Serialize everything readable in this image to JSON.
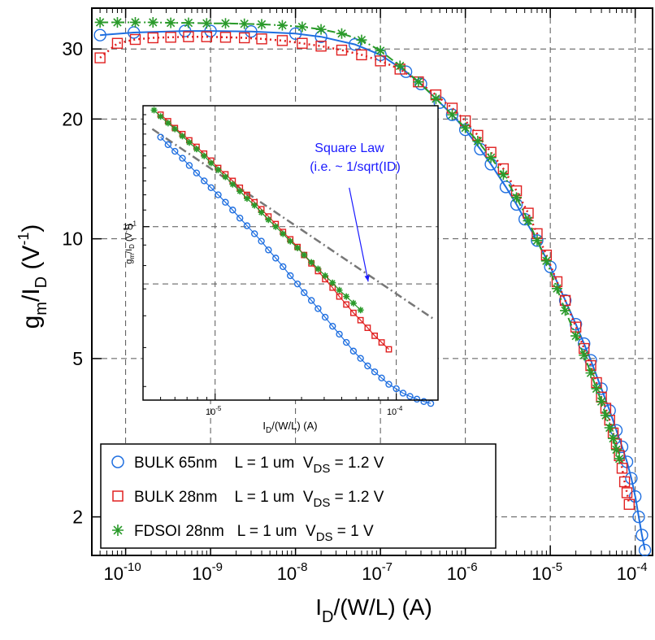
{
  "chart_data": [
    {
      "type": "scatter",
      "xlabel_main": "I",
      "xlabel_sub": "D",
      "xlabel_rest": "/(W/L) (A)",
      "ylabel_g": "g",
      "ylabel_m": "m",
      "ylabel_I": "/I",
      "ylabel_D": "D",
      "ylabel_units": " (V",
      "ylabel_exp": "-1",
      "ylabel_close": ")",
      "x_scale": "log",
      "y_scale": "log",
      "xlim": [
        4e-11,
        0.00016
      ],
      "ylim": [
        1.6,
        38
      ],
      "grid": true,
      "legend_placement": "bottom-left",
      "x_ticks": [
        {
          "value": 1e-10,
          "base": "10",
          "exp": "-10"
        },
        {
          "value": 1e-09,
          "base": "10",
          "exp": "-9"
        },
        {
          "value": 1e-08,
          "base": "10",
          "exp": "-8"
        },
        {
          "value": 1e-07,
          "base": "10",
          "exp": "-7"
        },
        {
          "value": 1e-06,
          "base": "10",
          "exp": "-6"
        },
        {
          "value": 1e-05,
          "base": "10",
          "exp": "-5"
        },
        {
          "value": 0.0001,
          "base": "10",
          "exp": "-4"
        }
      ],
      "y_ticks": [
        {
          "value": 2,
          "label": "2"
        },
        {
          "value": 5,
          "label": "5"
        },
        {
          "value": 10,
          "label": "10"
        },
        {
          "value": 20,
          "label": "20"
        },
        {
          "value": 30,
          "label": "30"
        }
      ],
      "series": [
        {
          "name": "BULK 65nm",
          "legend_text": "BULK 65nm    L = 1 um  V",
          "legend_sub": "DS",
          "legend_tail": " = 1.2 V",
          "color": "#1f6fe0",
          "marker": "circle",
          "line": "solid",
          "x": [
            5e-11,
            1.25e-10,
            5e-10,
            1e-09,
            3e-09,
            1e-08,
            2e-08,
            5e-08,
            1e-07,
            2e-07,
            3e-07,
            5e-07,
            7e-07,
            1e-06,
            1.5e-06,
            2e-06,
            3e-06,
            4e-06,
            5e-06,
            7e-06,
            1e-05,
            1.5e-05,
            2e-05,
            2.5e-05,
            3e-05,
            4e-05,
            5e-05,
            6e-05,
            7e-05,
            8e-05,
            9e-05,
            0.0001,
            0.00011,
            0.00012,
            0.00013
          ],
          "y": [
            32.5,
            33.0,
            33.3,
            33.3,
            33.2,
            32.8,
            32.2,
            30.8,
            29.0,
            26.3,
            24.5,
            22.0,
            20.5,
            18.8,
            16.8,
            15.4,
            13.5,
            12.2,
            11.2,
            9.9,
            8.5,
            7.0,
            6.1,
            5.45,
            4.95,
            4.2,
            3.7,
            3.3,
            3.0,
            2.75,
            2.5,
            2.25,
            2.0,
            1.8,
            1.65
          ]
        },
        {
          "name": "BULK 28nm",
          "legend_text": "BULK 28nm    L = 1 um  V",
          "legend_sub": "DS",
          "legend_tail": " = 1.2 V",
          "color": "#e02020",
          "marker": "square",
          "line": "dotted",
          "x": [
            5e-11,
            8e-11,
            1.3e-10,
            2.1e-10,
            3.4e-10,
            5.5e-10,
            9e-10,
            1.5e-09,
            2.5e-09,
            4e-09,
            7e-09,
            1.2e-08,
            2e-08,
            3.5e-08,
            6e-08,
            1e-07,
            1.7e-07,
            2.8e-07,
            4.5e-07,
            7e-07,
            1e-06,
            1.4e-06,
            2e-06,
            2.8e-06,
            4e-06,
            5.5e-06,
            7e-06,
            9e-06,
            1.2e-05,
            1.5e-05,
            2e-05,
            2.5e-05,
            3e-05,
            3.5e-05,
            4e-05,
            4.5e-05,
            5e-05,
            5.5e-05,
            6e-05,
            6.5e-05,
            7e-05,
            7.5e-05,
            8e-05,
            8.5e-05
          ],
          "y": [
            28.5,
            31.0,
            31.7,
            32.0,
            32.1,
            32.2,
            32.2,
            32.1,
            32.0,
            31.8,
            31.5,
            31.0,
            30.5,
            29.8,
            29.0,
            28.0,
            26.7,
            24.8,
            23.0,
            21.3,
            19.8,
            18.2,
            16.5,
            15.0,
            13.2,
            11.6,
            10.3,
            9.1,
            7.8,
            7.0,
            6.0,
            5.3,
            4.8,
            4.35,
            4.0,
            3.75,
            3.5,
            3.25,
            3.05,
            2.85,
            2.65,
            2.45,
            2.3,
            2.15
          ]
        },
        {
          "name": "FDSOI 28nm",
          "legend_text": "FDSOI 28nm   L = 1 um  V",
          "legend_sub": "DS",
          "legend_tail": " = 1 V",
          "color": "#2a9a2a",
          "marker": "star",
          "line": "dashdot",
          "x": [
            5e-11,
            8e-11,
            1.3e-10,
            2.1e-10,
            3.4e-10,
            5.5e-10,
            9e-10,
            1.5e-09,
            2.5e-09,
            4e-09,
            7e-09,
            1.2e-08,
            2e-08,
            3.5e-08,
            6e-08,
            1e-07,
            1.7e-07,
            2.8e-07,
            4.5e-07,
            7e-07,
            1e-06,
            1.4e-06,
            2e-06,
            2.8e-06,
            4e-06,
            5.5e-06,
            7e-06,
            9e-06,
            1.2e-05,
            1.5e-05,
            2e-05,
            2.5e-05,
            3e-05,
            3.5e-05,
            4e-05,
            4.5e-05,
            5e-05,
            5.5e-05,
            6e-05,
            6.5e-05
          ],
          "y": [
            35.0,
            35.0,
            35.0,
            35.0,
            34.9,
            34.9,
            34.8,
            34.8,
            34.7,
            34.6,
            34.4,
            34.1,
            33.6,
            32.8,
            31.6,
            29.7,
            27.2,
            24.8,
            22.5,
            20.5,
            19.0,
            17.6,
            16.0,
            14.5,
            12.7,
            11.1,
            9.9,
            8.8,
            7.5,
            6.6,
            5.7,
            5.1,
            4.6,
            4.2,
            3.9,
            3.6,
            3.35,
            3.15,
            2.95,
            2.8
          ]
        }
      ]
    },
    {
      "type": "scatter",
      "role": "inset",
      "xlabel_main": "I",
      "xlabel_sub": "D",
      "xlabel_rest": "/(W/L) (A)",
      "ylabel_g": "g",
      "ylabel_m": "m",
      "ylabel_I": "/I",
      "ylabel_D": "D",
      "ylabel_units": " (V",
      "ylabel_exp": "-1",
      "ylabel_close": ")",
      "x_scale": "log",
      "y_scale": "log",
      "xlim": [
        4e-06,
        0.00017
      ],
      "ylim": [
        3.7,
        20
      ],
      "grid": true,
      "x_ticks": [
        {
          "value": 1e-05,
          "base": "10",
          "exp": "-5"
        },
        {
          "value": 0.0001,
          "base": "10",
          "exp": "-4"
        }
      ],
      "y_ticks": [
        {
          "value": 10,
          "base": "10",
          "exp": "1"
        }
      ],
      "annotation_line1": "Square Law",
      "annotation_line2": "(i.e. ~ 1/sqrt(ID)",
      "reference_line": {
        "x": [
          4.5e-06,
          0.00016
        ],
        "y": [
          17.5,
          5.9
        ]
      },
      "arrow": {
        "from": [
          5.5e-05,
          12.5
        ],
        "to": [
          7e-05,
          7.3
        ]
      },
      "series": [
        {
          "name": "BULK 65nm",
          "color": "#1f6fe0",
          "marker": "circle",
          "x": [
            5e-06,
            5.5e-06,
            6e-06,
            6.6e-06,
            7.2e-06,
            7.9e-06,
            8.7e-06,
            9.5e-06,
            1.04e-05,
            1.14e-05,
            1.25e-05,
            1.37e-05,
            1.5e-05,
            1.65e-05,
            1.8e-05,
            1.97e-05,
            2.16e-05,
            2.37e-05,
            2.6e-05,
            2.85e-05,
            3.1e-05,
            3.4e-05,
            3.7e-05,
            4.05e-05,
            4.45e-05,
            4.85e-05,
            5.3e-05,
            5.8e-05,
            6.35e-05,
            6.95e-05,
            7.6e-05,
            8.3e-05,
            9.1e-05,
            0.0001,
            0.000109,
            0.000119,
            0.00013,
            0.000142,
            0.000155
          ],
          "y": [
            16.7,
            16.0,
            15.4,
            14.8,
            14.2,
            13.6,
            13.0,
            12.5,
            12.0,
            11.5,
            11.0,
            10.5,
            10.05,
            9.6,
            9.2,
            8.75,
            8.35,
            7.95,
            7.55,
            7.2,
            6.85,
            6.55,
            6.25,
            5.95,
            5.65,
            5.4,
            5.15,
            4.9,
            4.7,
            4.5,
            4.35,
            4.2,
            4.05,
            3.95,
            3.85,
            3.78,
            3.72,
            3.67,
            3.63
          ]
        },
        {
          "name": "BULK 28nm",
          "color": "#e02020",
          "marker": "square",
          "x": [
            5e-06,
            5.5e-06,
            6e-06,
            6.6e-06,
            7.2e-06,
            7.9e-06,
            8.7e-06,
            9.5e-06,
            1.04e-05,
            1.14e-05,
            1.25e-05,
            1.37e-05,
            1.5e-05,
            1.65e-05,
            1.8e-05,
            1.97e-05,
            2.16e-05,
            2.37e-05,
            2.6e-05,
            2.85e-05,
            3.1e-05,
            3.4e-05,
            3.7e-05,
            4.05e-05,
            4.45e-05,
            4.85e-05,
            5.3e-05,
            5.8e-05,
            6.35e-05,
            6.95e-05,
            7.6e-05,
            8.3e-05,
            9.1e-05
          ],
          "y": [
            19.0,
            18.3,
            17.6,
            17.0,
            16.4,
            15.8,
            15.2,
            14.6,
            14.0,
            13.5,
            13.0,
            12.5,
            12.0,
            11.5,
            11.05,
            10.6,
            10.15,
            9.7,
            9.3,
            8.9,
            8.5,
            8.1,
            7.75,
            7.4,
            7.05,
            6.7,
            6.4,
            6.1,
            5.85,
            5.6,
            5.35,
            5.15,
            4.95
          ]
        },
        {
          "name": "FDSOI 28nm",
          "color": "#2a9a2a",
          "marker": "star",
          "x": [
            4.6e-06,
            5e-06,
            5.5e-06,
            6e-06,
            6.6e-06,
            7.2e-06,
            7.9e-06,
            8.7e-06,
            9.5e-06,
            1.04e-05,
            1.14e-05,
            1.25e-05,
            1.37e-05,
            1.5e-05,
            1.65e-05,
            1.8e-05,
            1.97e-05,
            2.16e-05,
            2.37e-05,
            2.6e-05,
            2.85e-05,
            3.1e-05,
            3.4e-05,
            3.7e-05,
            4.05e-05,
            4.45e-05,
            4.85e-05,
            5.3e-05,
            5.8e-05,
            6.35e-05
          ],
          "y": [
            19.5,
            18.8,
            18.1,
            17.5,
            16.8,
            16.2,
            15.6,
            15.0,
            14.4,
            13.85,
            13.3,
            12.75,
            12.25,
            11.75,
            11.3,
            10.85,
            10.4,
            10.0,
            9.6,
            9.2,
            8.85,
            8.5,
            8.15,
            7.85,
            7.55,
            7.25,
            6.95,
            6.7,
            6.45,
            6.2
          ]
        }
      ]
    }
  ]
}
